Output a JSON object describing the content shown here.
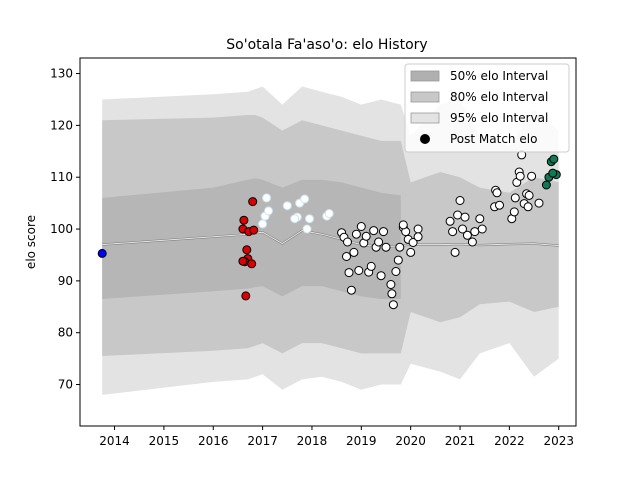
{
  "chart_data": {
    "type": "scatter",
    "title": "So'otala Fa'aso'o: elo History",
    "xlabel": "",
    "ylabel": "elo score",
    "xlim": [
      2013.3,
      2023.35
    ],
    "ylim": [
      62,
      133
    ],
    "x_ticks": [
      "2014",
      "2015",
      "2016",
      "2017",
      "2018",
      "2019",
      "2020",
      "2021",
      "2022",
      "2023"
    ],
    "y_ticks": [
      "70",
      "80",
      "90",
      "100",
      "110",
      "120",
      "130"
    ],
    "legend_position": "top-right",
    "legend": [
      {
        "label": "50% elo Interval",
        "kind": "band",
        "color": "#b0b0b0"
      },
      {
        "label": "80% elo Interval",
        "kind": "band",
        "color": "#c8c8c8"
      },
      {
        "label": "95% elo Interval",
        "kind": "band",
        "color": "#e3e3e3"
      },
      {
        "label": "Post Match elo",
        "kind": "marker",
        "color": "#000000"
      }
    ],
    "intervals": {
      "x": [
        2013.75,
        2016.0,
        2016.7,
        2016.85,
        2017.0,
        2017.4,
        2017.8,
        2018.2,
        2018.6,
        2019.0,
        2019.4,
        2019.8,
        2020.0,
        2020.6,
        2021.0,
        2021.4,
        2022.0,
        2022.5,
        2023.0
      ],
      "center": [
        97.0,
        98.5,
        99.0,
        99.2,
        99.4,
        97.2,
        99.7,
        99.0,
        98.0,
        97.0,
        96.5,
        96.8,
        97.0,
        97.0,
        97.1,
        96.9,
        97.1,
        97.2,
        96.8
      ],
      "p50": {
        "x_end": 2019.8,
        "upper": [
          106,
          108,
          109.5,
          109.8,
          109.5,
          108,
          109.5,
          109.5,
          109,
          108,
          107,
          106.5
        ],
        "lower": [
          86.5,
          88,
          88.5,
          88.8,
          89,
          87,
          89,
          89,
          88,
          87,
          86.5,
          86.5
        ]
      },
      "p80": {
        "upper": [
          121,
          121.5,
          122,
          122,
          121.5,
          119,
          121,
          120,
          119,
          118,
          117,
          117,
          109,
          111,
          110,
          108,
          107,
          110,
          109
        ],
        "lower": [
          75.5,
          76.5,
          77,
          77.5,
          78,
          76,
          78,
          78,
          77,
          76,
          76,
          76,
          84,
          82,
          83,
          85.5,
          86,
          84,
          85
        ]
      },
      "p95": {
        "upper": [
          125,
          126,
          126.5,
          127,
          127.5,
          124,
          127.5,
          126.5,
          125.5,
          124,
          125,
          124,
          118,
          124,
          125,
          118,
          116,
          123,
          119
        ],
        "lower": [
          68,
          70.5,
          71,
          71.5,
          72,
          69,
          71,
          71.5,
          70.5,
          69,
          70,
          70,
          74,
          72.5,
          71,
          76,
          78,
          71.5,
          75
        ]
      }
    },
    "series": [
      {
        "color": "#0000ff",
        "points": [
          [
            2013.75,
            95.3
          ]
        ]
      },
      {
        "color": "#dd0000",
        "points": [
          [
            2016.62,
            101.7
          ],
          [
            2016.6,
            100.0
          ],
          [
            2016.72,
            99.5
          ],
          [
            2016.8,
            105.3
          ],
          [
            2016.82,
            99.8
          ],
          [
            2016.68,
            96.0
          ],
          [
            2016.7,
            94.3
          ],
          [
            2016.64,
            93.7
          ],
          [
            2016.78,
            93.3
          ],
          [
            2016.66,
            87.1
          ],
          [
            2016.6,
            93.8
          ]
        ]
      },
      {
        "color": "#ffffff",
        "edge": "#cfe2f3",
        "points": [
          [
            2017.0,
            101.0
          ],
          [
            2017.05,
            102.5
          ],
          [
            2017.12,
            103.5
          ],
          [
            2017.08,
            106.0
          ],
          [
            2017.5,
            104.5
          ],
          [
            2017.7,
            102.3
          ],
          [
            2017.75,
            105.0
          ],
          [
            2017.85,
            105.8
          ],
          [
            2017.9,
            100.0
          ],
          [
            2017.95,
            102.0
          ],
          [
            2018.3,
            102.5
          ],
          [
            2018.35,
            103.0
          ],
          [
            2017.65,
            102.0
          ]
        ]
      },
      {
        "color": "#ffffff",
        "edge": "#000000",
        "points": [
          [
            2018.6,
            99.3
          ],
          [
            2018.65,
            98.4
          ],
          [
            2018.7,
            94.7
          ],
          [
            2018.72,
            97.5
          ],
          [
            2018.75,
            91.6
          ],
          [
            2018.8,
            88.2
          ],
          [
            2018.85,
            95.5
          ],
          [
            2018.9,
            99.0
          ],
          [
            2018.95,
            92.0
          ],
          [
            2019.0,
            100.5
          ],
          [
            2019.05,
            97.3
          ],
          [
            2019.1,
            98.6
          ],
          [
            2019.15,
            91.7
          ],
          [
            2019.2,
            92.8
          ],
          [
            2019.25,
            99.7
          ],
          [
            2019.3,
            96.5
          ],
          [
            2019.35,
            97.5
          ],
          [
            2019.4,
            91.0
          ],
          [
            2019.45,
            99.5
          ],
          [
            2019.5,
            96.5
          ],
          [
            2019.6,
            89.3
          ],
          [
            2019.62,
            87.5
          ],
          [
            2019.65,
            85.4
          ],
          [
            2019.7,
            91.8
          ],
          [
            2019.75,
            94.0
          ],
          [
            2019.78,
            96.5
          ],
          [
            2019.85,
            100.3
          ],
          [
            2019.9,
            99.5
          ],
          [
            2019.95,
            98.0
          ],
          [
            2020.0,
            95.5
          ],
          [
            2020.05,
            97.4
          ],
          [
            2020.15,
            100.0
          ],
          [
            2020.15,
            98.5
          ],
          [
            2019.85,
            100.8
          ],
          [
            2020.8,
            101.5
          ],
          [
            2020.85,
            99.5
          ],
          [
            2020.9,
            95.5
          ],
          [
            2020.95,
            102.7
          ],
          [
            2021.0,
            105.5
          ],
          [
            2021.05,
            100.0
          ],
          [
            2021.1,
            102.3
          ],
          [
            2021.15,
            98.8
          ],
          [
            2021.25,
            97.5
          ],
          [
            2021.3,
            99.5
          ],
          [
            2021.4,
            102.0
          ],
          [
            2021.45,
            100.0
          ],
          [
            2021.7,
            104.3
          ],
          [
            2021.72,
            107.5
          ],
          [
            2021.75,
            107.0
          ],
          [
            2021.8,
            104.6
          ],
          [
            2022.05,
            102.0
          ],
          [
            2022.1,
            103.3
          ],
          [
            2022.12,
            106.0
          ],
          [
            2022.15,
            109.0
          ],
          [
            2022.2,
            111.0
          ],
          [
            2022.22,
            110.2
          ],
          [
            2022.25,
            114.3
          ],
          [
            2022.3,
            104.9
          ],
          [
            2022.35,
            106.8
          ],
          [
            2022.38,
            104.3
          ],
          [
            2022.4,
            106.5
          ],
          [
            2022.45,
            110.2
          ],
          [
            2022.6,
            105.0
          ]
        ]
      },
      {
        "color": "#0f7a55",
        "points": [
          [
            2022.75,
            108.5
          ],
          [
            2022.8,
            110.0
          ],
          [
            2022.85,
            113.0
          ],
          [
            2022.9,
            113.5
          ],
          [
            2022.95,
            110.5
          ],
          [
            2022.88,
            110.8
          ]
        ]
      }
    ]
  }
}
